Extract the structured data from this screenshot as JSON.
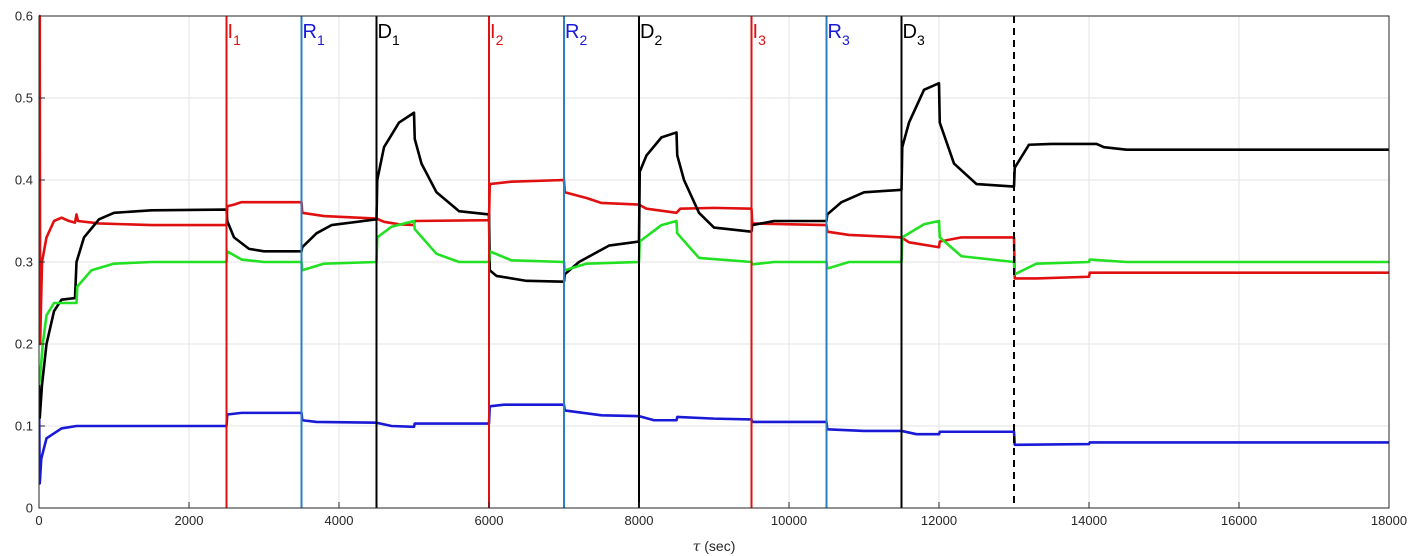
{
  "chart_data": {
    "type": "line",
    "xlabel_symbol": "τ",
    "xlabel_unit": " (sec)",
    "xlim": [
      0,
      18000
    ],
    "ylim": [
      0,
      0.6
    ],
    "xticks": [
      0,
      2000,
      4000,
      6000,
      8000,
      10000,
      12000,
      14000,
      16000,
      18000
    ],
    "yticks": [
      0,
      0.1,
      0.2,
      0.3,
      0.4,
      0.5,
      0.6
    ],
    "grid": true,
    "colors": {
      "red": "#e01010",
      "blue": "#1a1ad6",
      "black": "#000000",
      "green": "#22e022",
      "event_blue": "#2a7fc0"
    },
    "events": [
      {
        "letter": "I",
        "sub": "1",
        "x": 2500,
        "color": "#e01010"
      },
      {
        "letter": "R",
        "sub": "1",
        "x": 3500,
        "color": "#2a7fc0",
        "text_color": "#1a1ad6"
      },
      {
        "letter": "D",
        "sub": "1",
        "x": 4500,
        "color": "#000000"
      },
      {
        "letter": "I",
        "sub": "2",
        "x": 6000,
        "color": "#e01010"
      },
      {
        "letter": "R",
        "sub": "2",
        "x": 7000,
        "color": "#2a7fc0",
        "text_color": "#1a1ad6"
      },
      {
        "letter": "D",
        "sub": "2",
        "x": 8000,
        "color": "#000000"
      },
      {
        "letter": "I",
        "sub": "3",
        "x": 9500,
        "color": "#e01010"
      },
      {
        "letter": "R",
        "sub": "3",
        "x": 10500,
        "color": "#2a7fc0",
        "text_color": "#1a1ad6"
      },
      {
        "letter": "D",
        "sub": "3",
        "x": 11500,
        "color": "#000000"
      }
    ],
    "dashed_line_x": 13000,
    "series": [
      {
        "color": "#e01010",
        "points": [
          [
            0,
            0.6
          ],
          [
            10,
            0.6
          ],
          [
            15,
            0.2
          ],
          [
            40,
            0.3
          ],
          [
            100,
            0.33
          ],
          [
            200,
            0.35
          ],
          [
            300,
            0.354
          ],
          [
            400,
            0.35
          ],
          [
            480,
            0.348
          ],
          [
            500,
            0.358
          ],
          [
            520,
            0.35
          ],
          [
            800,
            0.347
          ],
          [
            1500,
            0.345
          ],
          [
            2500,
            0.345
          ],
          [
            2510,
            0.368
          ],
          [
            2600,
            0.37
          ],
          [
            2700,
            0.373
          ],
          [
            3500,
            0.373
          ],
          [
            3510,
            0.36
          ],
          [
            3800,
            0.356
          ],
          [
            4500,
            0.353
          ],
          [
            4600,
            0.349
          ],
          [
            4800,
            0.346
          ],
          [
            5000,
            0.345
          ],
          [
            5010,
            0.35
          ],
          [
            6000,
            0.351
          ],
          [
            6010,
            0.395
          ],
          [
            6300,
            0.398
          ],
          [
            7000,
            0.4
          ],
          [
            7010,
            0.385
          ],
          [
            7300,
            0.378
          ],
          [
            7500,
            0.372
          ],
          [
            8000,
            0.37
          ],
          [
            8100,
            0.365
          ],
          [
            8500,
            0.36
          ],
          [
            8550,
            0.365
          ],
          [
            9000,
            0.366
          ],
          [
            9500,
            0.365
          ],
          [
            9510,
            0.347
          ],
          [
            10500,
            0.345
          ],
          [
            10510,
            0.337
          ],
          [
            10800,
            0.333
          ],
          [
            11500,
            0.33
          ],
          [
            11600,
            0.324
          ],
          [
            12000,
            0.318
          ],
          [
            12010,
            0.325
          ],
          [
            12300,
            0.33
          ],
          [
            13000,
            0.33
          ],
          [
            13010,
            0.28
          ],
          [
            13300,
            0.28
          ],
          [
            14000,
            0.282
          ],
          [
            14010,
            0.287
          ],
          [
            18000,
            0.287
          ]
        ]
      },
      {
        "color": "#1a1ad6",
        "points": [
          [
            0,
            0.14
          ],
          [
            10,
            0.03
          ],
          [
            30,
            0.06
          ],
          [
            100,
            0.085
          ],
          [
            300,
            0.097
          ],
          [
            500,
            0.1
          ],
          [
            2500,
            0.1
          ],
          [
            2510,
            0.114
          ],
          [
            2700,
            0.116
          ],
          [
            3500,
            0.116
          ],
          [
            3510,
            0.107
          ],
          [
            3700,
            0.105
          ],
          [
            4500,
            0.104
          ],
          [
            4700,
            0.1
          ],
          [
            5000,
            0.099
          ],
          [
            5010,
            0.103
          ],
          [
            6000,
            0.103
          ],
          [
            6010,
            0.124
          ],
          [
            6200,
            0.126
          ],
          [
            7000,
            0.126
          ],
          [
            7010,
            0.119
          ],
          [
            7500,
            0.113
          ],
          [
            8000,
            0.112
          ],
          [
            8200,
            0.107
          ],
          [
            8500,
            0.107
          ],
          [
            8510,
            0.111
          ],
          [
            9000,
            0.109
          ],
          [
            9500,
            0.108
          ],
          [
            9510,
            0.105
          ],
          [
            10500,
            0.105
          ],
          [
            10510,
            0.096
          ],
          [
            11000,
            0.094
          ],
          [
            11500,
            0.094
          ],
          [
            11700,
            0.09
          ],
          [
            12000,
            0.09
          ],
          [
            12010,
            0.093
          ],
          [
            13000,
            0.093
          ],
          [
            13010,
            0.077
          ],
          [
            14000,
            0.078
          ],
          [
            14010,
            0.08
          ],
          [
            18000,
            0.08
          ]
        ]
      },
      {
        "color": "#000000",
        "points": [
          [
            0,
            0.15
          ],
          [
            10,
            0.11
          ],
          [
            40,
            0.15
          ],
          [
            100,
            0.2
          ],
          [
            200,
            0.24
          ],
          [
            300,
            0.254
          ],
          [
            480,
            0.256
          ],
          [
            500,
            0.3
          ],
          [
            600,
            0.33
          ],
          [
            800,
            0.352
          ],
          [
            1000,
            0.36
          ],
          [
            1500,
            0.363
          ],
          [
            2500,
            0.364
          ],
          [
            2510,
            0.35
          ],
          [
            2600,
            0.33
          ],
          [
            2800,
            0.316
          ],
          [
            3000,
            0.313
          ],
          [
            3500,
            0.313
          ],
          [
            3510,
            0.318
          ],
          [
            3700,
            0.335
          ],
          [
            3900,
            0.345
          ],
          [
            4500,
            0.352
          ],
          [
            4510,
            0.4
          ],
          [
            4600,
            0.44
          ],
          [
            4800,
            0.47
          ],
          [
            5000,
            0.482
          ],
          [
            5010,
            0.45
          ],
          [
            5100,
            0.42
          ],
          [
            5300,
            0.385
          ],
          [
            5600,
            0.362
          ],
          [
            6000,
            0.358
          ],
          [
            6010,
            0.29
          ],
          [
            6100,
            0.283
          ],
          [
            6500,
            0.277
          ],
          [
            7000,
            0.276
          ],
          [
            7010,
            0.285
          ],
          [
            7200,
            0.3
          ],
          [
            7600,
            0.32
          ],
          [
            8000,
            0.325
          ],
          [
            8010,
            0.41
          ],
          [
            8100,
            0.43
          ],
          [
            8300,
            0.452
          ],
          [
            8500,
            0.458
          ],
          [
            8510,
            0.43
          ],
          [
            8600,
            0.4
          ],
          [
            8800,
            0.36
          ],
          [
            9000,
            0.342
          ],
          [
            9500,
            0.337
          ],
          [
            9510,
            0.345
          ],
          [
            9800,
            0.35
          ],
          [
            10500,
            0.35
          ],
          [
            10510,
            0.358
          ],
          [
            10700,
            0.373
          ],
          [
            11000,
            0.385
          ],
          [
            11500,
            0.388
          ],
          [
            11510,
            0.44
          ],
          [
            11600,
            0.47
          ],
          [
            11800,
            0.51
          ],
          [
            12000,
            0.518
          ],
          [
            12010,
            0.47
          ],
          [
            12200,
            0.42
          ],
          [
            12500,
            0.395
          ],
          [
            13000,
            0.392
          ],
          [
            13010,
            0.415
          ],
          [
            13200,
            0.443
          ],
          [
            13500,
            0.444
          ],
          [
            14100,
            0.444
          ],
          [
            14200,
            0.44
          ],
          [
            14500,
            0.437
          ],
          [
            18000,
            0.437
          ]
        ]
      },
      {
        "color": "#22e022",
        "points": [
          [
            0,
            0.15
          ],
          [
            15,
            0.16
          ],
          [
            50,
            0.2
          ],
          [
            100,
            0.235
          ],
          [
            200,
            0.25
          ],
          [
            500,
            0.25
          ],
          [
            510,
            0.27
          ],
          [
            700,
            0.29
          ],
          [
            1000,
            0.298
          ],
          [
            1500,
            0.3
          ],
          [
            2500,
            0.3
          ],
          [
            2510,
            0.313
          ],
          [
            2700,
            0.303
          ],
          [
            3000,
            0.3
          ],
          [
            3500,
            0.3
          ],
          [
            3510,
            0.29
          ],
          [
            3800,
            0.298
          ],
          [
            4500,
            0.3
          ],
          [
            4510,
            0.33
          ],
          [
            4700,
            0.343
          ],
          [
            5000,
            0.35
          ],
          [
            5010,
            0.34
          ],
          [
            5300,
            0.31
          ],
          [
            5600,
            0.3
          ],
          [
            6000,
            0.3
          ],
          [
            6010,
            0.313
          ],
          [
            6300,
            0.302
          ],
          [
            7000,
            0.3
          ],
          [
            7010,
            0.29
          ],
          [
            7300,
            0.298
          ],
          [
            8000,
            0.3
          ],
          [
            8010,
            0.325
          ],
          [
            8300,
            0.345
          ],
          [
            8500,
            0.35
          ],
          [
            8510,
            0.335
          ],
          [
            8800,
            0.305
          ],
          [
            9500,
            0.3
          ],
          [
            9510,
            0.297
          ],
          [
            9800,
            0.3
          ],
          [
            10500,
            0.3
          ],
          [
            10510,
            0.292
          ],
          [
            10800,
            0.3
          ],
          [
            11500,
            0.3
          ],
          [
            11510,
            0.33
          ],
          [
            11800,
            0.346
          ],
          [
            12000,
            0.35
          ],
          [
            12010,
            0.33
          ],
          [
            12300,
            0.307
          ],
          [
            13000,
            0.3
          ],
          [
            13010,
            0.285
          ],
          [
            13300,
            0.298
          ],
          [
            14000,
            0.3
          ],
          [
            14010,
            0.303
          ],
          [
            14500,
            0.3
          ],
          [
            18000,
            0.3
          ]
        ]
      }
    ]
  }
}
